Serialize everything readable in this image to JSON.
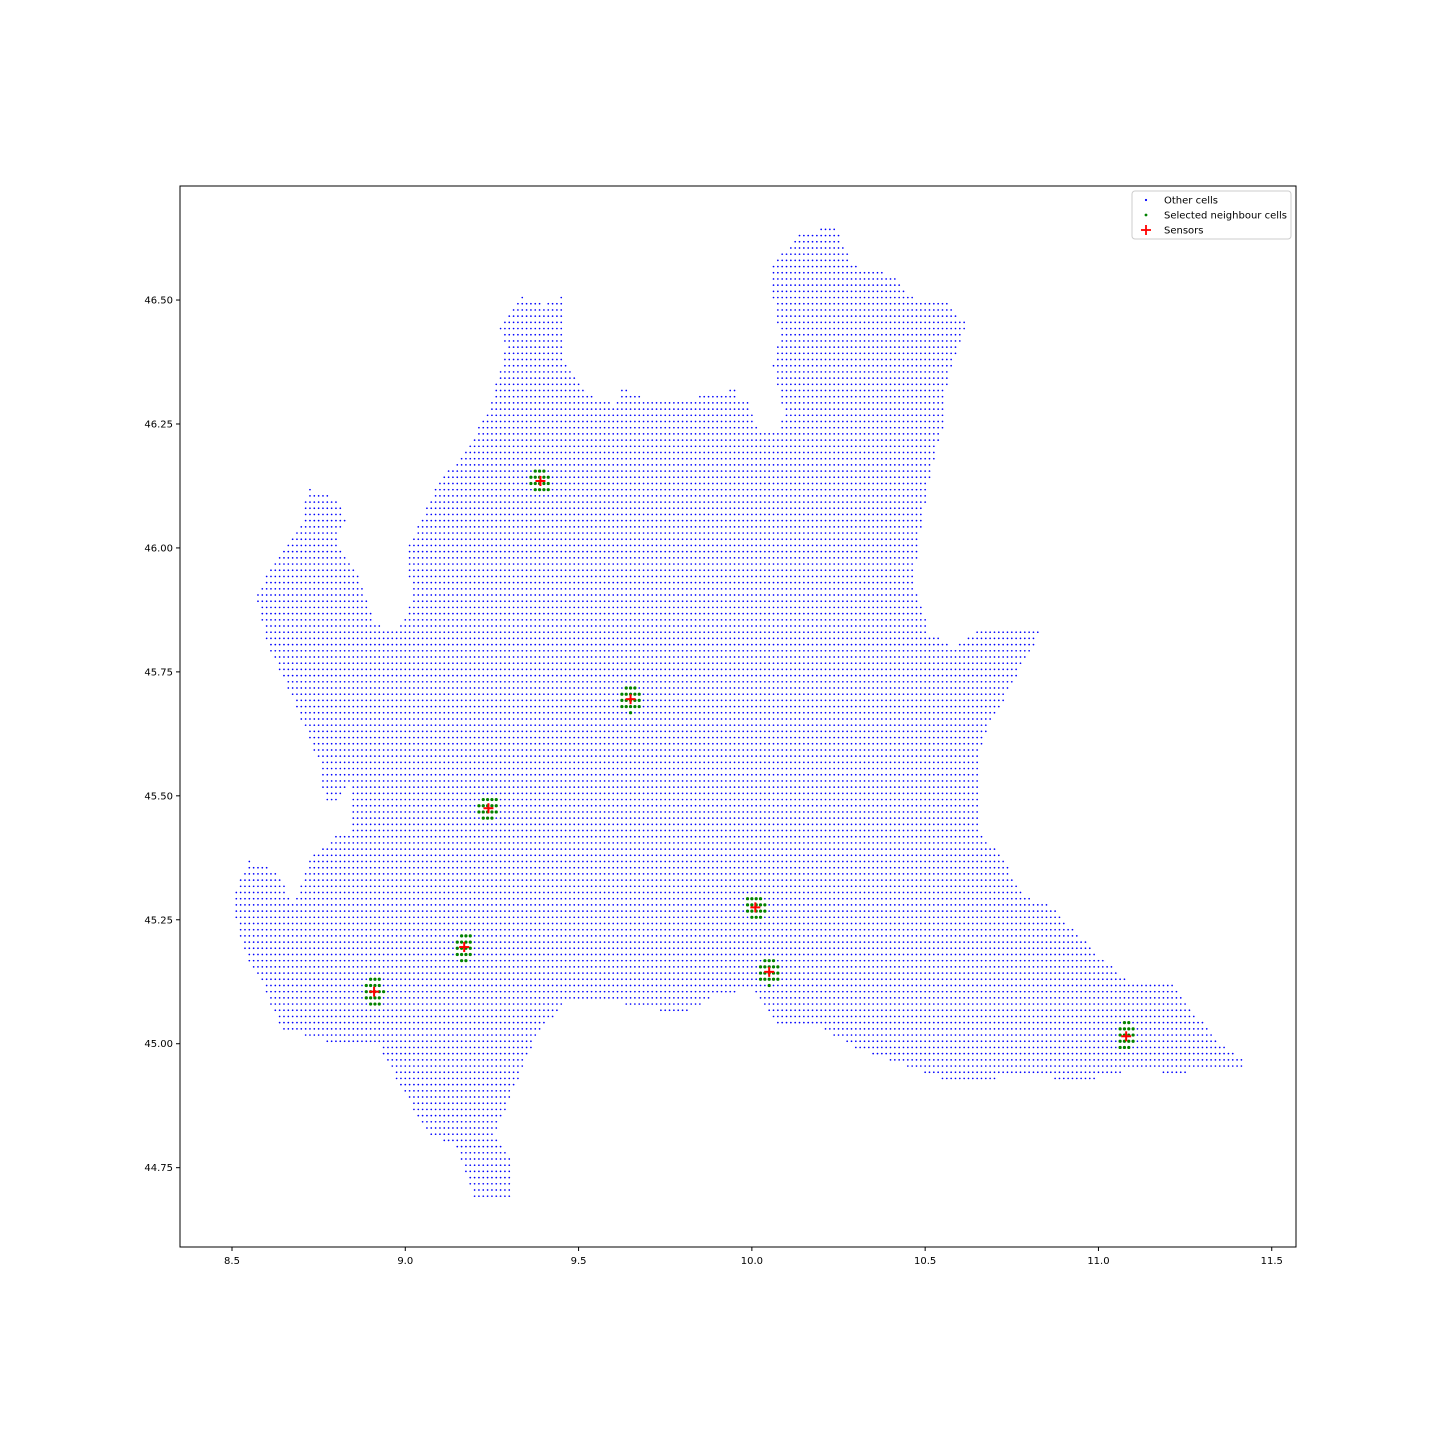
{
  "chart_data": {
    "type": "scatter",
    "title": "",
    "xlabel": "",
    "ylabel": "",
    "xlim": [
      8.35,
      11.57
    ],
    "ylim": [
      44.59,
      46.73
    ],
    "x_ticks": [
      "8.5",
      "9.0",
      "9.5",
      "10.0",
      "10.5",
      "11.0",
      "11.5"
    ],
    "y_ticks": [
      "44.75",
      "45.00",
      "45.25",
      "45.50",
      "45.75",
      "46.00",
      "46.25",
      "46.50"
    ],
    "grid": false,
    "legend_position": "upper right",
    "grid_step": 0.0125,
    "series": [
      {
        "name": "Other cells",
        "color": "#0000ff",
        "marker": "dot",
        "region_polygon": [
          [
            8.5,
            45.3
          ],
          [
            8.55,
            45.37
          ],
          [
            8.63,
            45.35
          ],
          [
            8.68,
            45.28
          ],
          [
            8.72,
            45.37
          ],
          [
            8.8,
            45.42
          ],
          [
            8.84,
            45.43
          ],
          [
            8.84,
            45.52
          ],
          [
            8.8,
            45.49
          ],
          [
            8.77,
            45.48
          ],
          [
            8.75,
            45.57
          ],
          [
            8.69,
            45.67
          ],
          [
            8.66,
            45.72
          ],
          [
            8.61,
            45.79
          ],
          [
            8.57,
            45.9
          ],
          [
            8.6,
            45.95
          ],
          [
            8.7,
            46.05
          ],
          [
            8.72,
            46.12
          ],
          [
            8.8,
            46.1
          ],
          [
            8.83,
            46.06
          ],
          [
            8.8,
            46.01
          ],
          [
            8.86,
            45.95
          ],
          [
            8.91,
            45.85
          ],
          [
            8.98,
            45.83
          ],
          [
            9.02,
            45.9
          ],
          [
            9.0,
            46.0
          ],
          [
            9.05,
            46.06
          ],
          [
            9.09,
            46.13
          ],
          [
            9.18,
            46.2
          ],
          [
            9.24,
            46.28
          ],
          [
            9.29,
            46.4
          ],
          [
            9.27,
            46.45
          ],
          [
            9.33,
            46.51
          ],
          [
            9.4,
            46.49
          ],
          [
            9.46,
            46.51
          ],
          [
            9.45,
            46.39
          ],
          [
            9.53,
            46.31
          ],
          [
            9.6,
            46.29
          ],
          [
            9.66,
            46.36
          ],
          [
            9.79,
            46.37
          ],
          [
            9.91,
            46.38
          ],
          [
            9.96,
            46.34
          ],
          [
            10.02,
            46.24
          ],
          [
            10.08,
            46.23
          ],
          [
            10.09,
            46.28
          ],
          [
            10.06,
            46.37
          ],
          [
            10.08,
            46.42
          ],
          [
            10.05,
            46.56
          ],
          [
            10.13,
            46.63
          ],
          [
            10.24,
            46.65
          ],
          [
            10.29,
            46.57
          ],
          [
            10.41,
            46.55
          ],
          [
            10.47,
            46.5
          ],
          [
            10.56,
            46.5
          ],
          [
            10.62,
            46.45
          ],
          [
            10.58,
            46.37
          ],
          [
            10.55,
            46.29
          ],
          [
            10.55,
            46.24
          ],
          [
            10.51,
            46.13
          ],
          [
            10.49,
            46.05
          ],
          [
            10.48,
            46.01
          ],
          [
            10.47,
            45.93
          ],
          [
            10.51,
            45.83
          ],
          [
            10.58,
            45.8
          ],
          [
            10.66,
            45.84
          ],
          [
            10.84,
            45.84
          ],
          [
            10.67,
            45.62
          ],
          [
            10.65,
            45.55
          ],
          [
            10.65,
            45.43
          ],
          [
            10.72,
            45.38
          ],
          [
            10.78,
            45.3
          ],
          [
            10.86,
            45.28
          ],
          [
            11.0,
            45.18
          ],
          [
            11.1,
            45.12
          ],
          [
            11.21,
            45.12
          ],
          [
            11.27,
            45.07
          ],
          [
            11.35,
            45.0
          ],
          [
            11.43,
            44.96
          ],
          [
            11.4,
            44.95
          ],
          [
            11.2,
            44.94
          ],
          [
            11.12,
            44.95
          ],
          [
            10.93,
            44.92
          ],
          [
            10.82,
            44.94
          ],
          [
            10.58,
            44.92
          ],
          [
            10.43,
            44.96
          ],
          [
            10.3,
            44.99
          ],
          [
            10.18,
            45.04
          ],
          [
            10.07,
            45.04
          ],
          [
            10.0,
            45.11
          ],
          [
            9.9,
            45.1
          ],
          [
            9.8,
            45.06
          ],
          [
            9.55,
            45.09
          ],
          [
            9.47,
            45.09
          ],
          [
            9.38,
            45.02
          ],
          [
            9.32,
            44.92
          ],
          [
            9.26,
            44.82
          ],
          [
            9.3,
            44.77
          ],
          [
            9.31,
            44.68
          ],
          [
            9.2,
            44.69
          ],
          [
            9.15,
            44.79
          ],
          [
            9.06,
            44.82
          ],
          [
            8.99,
            44.91
          ],
          [
            8.92,
            45.0
          ],
          [
            8.8,
            45.0
          ],
          [
            8.64,
            45.03
          ],
          [
            8.59,
            45.12
          ],
          [
            8.53,
            45.19
          ],
          [
            8.5,
            45.3
          ]
        ],
        "exclusion_polygons": [
          [
            [
              8.88,
              45.95
            ],
            [
              8.94,
              45.98
            ],
            [
              9.01,
              45.93
            ],
            [
              8.99,
              45.86
            ],
            [
              8.95,
              45.84
            ],
            [
              8.91,
              45.87
            ]
          ],
          [
            [
              9.55,
              46.5
            ],
            [
              9.6,
              46.33
            ],
            [
              9.7,
              46.3
            ],
            [
              9.8,
              46.3
            ],
            [
              9.95,
              46.32
            ],
            [
              10.0,
              46.4
            ],
            [
              10.0,
              46.6
            ],
            [
              9.8,
              46.65
            ],
            [
              9.6,
              46.62
            ]
          ],
          [
            [
              10.04,
              46.3
            ],
            [
              10.06,
              46.38
            ],
            [
              10.04,
              46.65
            ],
            [
              9.95,
              46.68
            ],
            [
              9.95,
              46.3
            ]
          ]
        ]
      },
      {
        "name": "Selected neighbour cells",
        "color": "#008000",
        "marker": "dot",
        "cluster_radius": 0.03
      },
      {
        "name": "Sensors",
        "color": "#ff0000",
        "marker": "plus",
        "x": [
          9.39,
          9.65,
          9.24,
          10.01,
          9.17,
          10.05,
          8.91,
          11.08
        ],
        "y": [
          46.135,
          45.695,
          45.475,
          45.275,
          45.195,
          45.145,
          45.105,
          45.015
        ]
      }
    ]
  }
}
